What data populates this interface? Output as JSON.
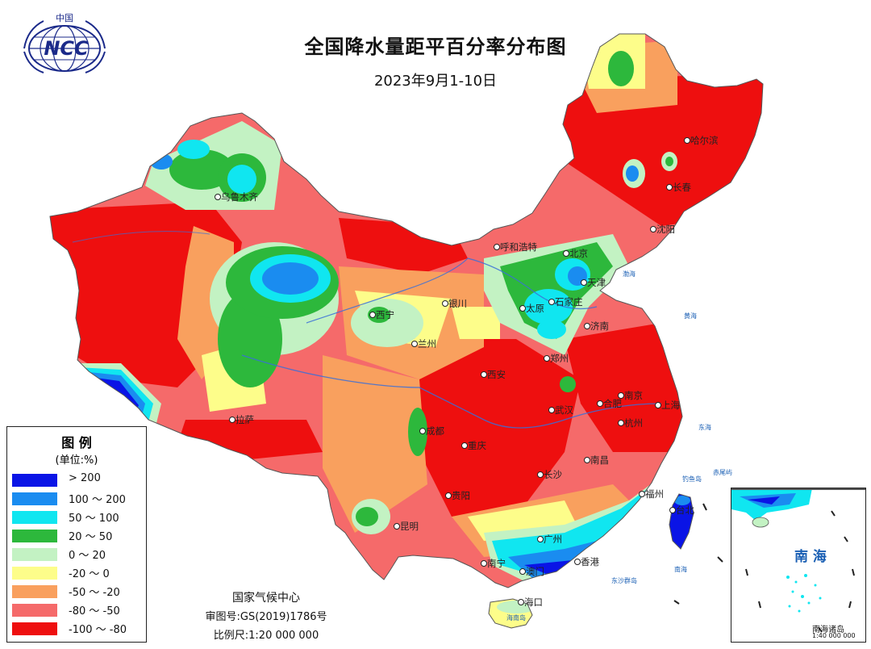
{
  "title": "全国降水量距平百分率分布图",
  "subtitle": "2023年9月1-10日",
  "logo": {
    "top_text": "中国",
    "text": "NCC",
    "icon": "ncc-globe-logo"
  },
  "legend": {
    "title": "图 例",
    "unit": "(单位:%)",
    "items": [
      {
        "label": "> 200",
        "color": "#0a14e6"
      },
      {
        "label": "100 ～ 200",
        "color": "#1a8cf0"
      },
      {
        "label": "50 ～ 100",
        "color": "#10e6f0"
      },
      {
        "label": "20 ～ 50",
        "color": "#2db83c"
      },
      {
        "label": "0 ～ 20",
        "color": "#c3f2c3"
      },
      {
        "label": "-20 ～ 0",
        "color": "#fdfd8a"
      },
      {
        "label": "-50 ～ -20",
        "color": "#f9a05e"
      },
      {
        "label": "-80 ～ -50",
        "color": "#f56a6a"
      },
      {
        "label": "-100 ～ -80",
        "color": "#ee0f0f"
      }
    ]
  },
  "footer": {
    "agency": "国家气候中心",
    "approval": "审图号:GS(2019)1786号",
    "scale": "比例尺:1:20 000 000"
  },
  "inset": {
    "sea_label": "南 海",
    "islands_label": "南海诸岛",
    "scale": "1:40 000 000"
  },
  "cities": [
    {
      "name": "哈尔滨"
    },
    {
      "name": "长春"
    },
    {
      "name": "沈阳"
    },
    {
      "name": "乌鲁木齐"
    },
    {
      "name": "呼和浩特"
    },
    {
      "name": "北京"
    },
    {
      "name": "天津"
    },
    {
      "name": "银川"
    },
    {
      "name": "太原"
    },
    {
      "name": "石家庄"
    },
    {
      "name": "西宁"
    },
    {
      "name": "济南"
    },
    {
      "name": "兰州"
    },
    {
      "name": "郑州"
    },
    {
      "name": "西安"
    },
    {
      "name": "南京"
    },
    {
      "name": "合肥"
    },
    {
      "name": "上海"
    },
    {
      "name": "武汉"
    },
    {
      "name": "杭州"
    },
    {
      "name": "拉萨"
    },
    {
      "name": "成都"
    },
    {
      "name": "重庆"
    },
    {
      "name": "南昌"
    },
    {
      "name": "长沙"
    },
    {
      "name": "福州"
    },
    {
      "name": "台北"
    },
    {
      "name": "贵阳"
    },
    {
      "name": "昆明"
    },
    {
      "name": "广州"
    },
    {
      "name": "南宁"
    },
    {
      "name": "香港"
    },
    {
      "name": "澳门"
    },
    {
      "name": "海口"
    }
  ],
  "sea_labels": [
    "渤海",
    "黄海",
    "东海",
    "南海",
    "钓鱼岛",
    "赤尾屿",
    "东沙群岛",
    "海南岛"
  ]
}
